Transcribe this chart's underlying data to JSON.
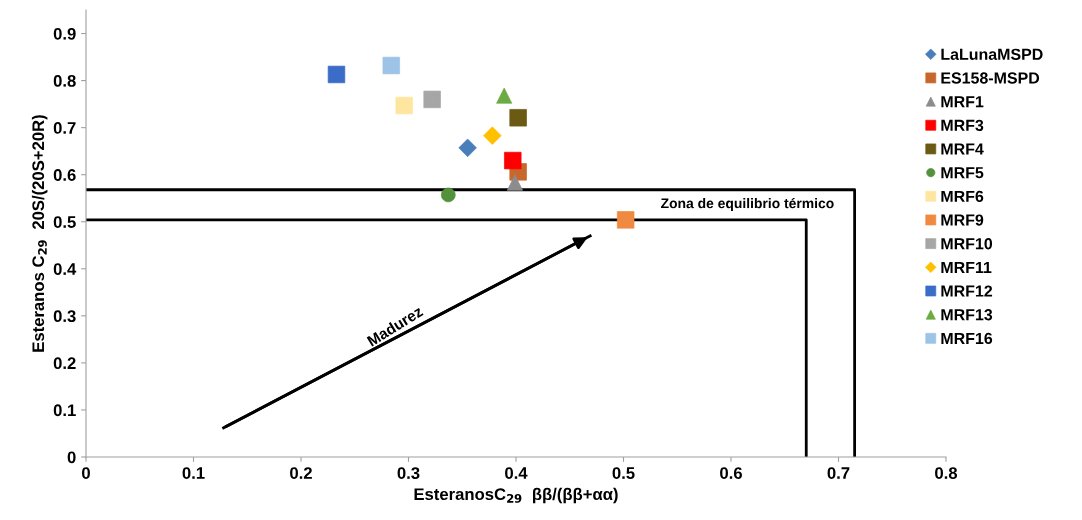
{
  "chart_data": {
    "type": "scatter",
    "xlabel": "EsteranosC$_{29}$  ββ/(ββ+αα)",
    "ylabel": "Esteranos C$_{29}$  20S/(20S+20R)",
    "xlim": [
      0,
      0.8
    ],
    "xticks": [
      0,
      0.1,
      0.2,
      0.3,
      0.4,
      0.5,
      0.6,
      0.7,
      0.8
    ],
    "ylim": [
      0,
      0.95
    ],
    "yticks": [
      0,
      0.1,
      0.2,
      0.3,
      0.4,
      0.5,
      0.6,
      0.7,
      0.8,
      0.9
    ],
    "grid": false,
    "legend": "right",
    "annotations": [
      "Zona de equilibrio térmico",
      "Madurez"
    ],
    "series": [
      {
        "name": "LaLunaMSPD",
        "color": "#4a7ebb",
        "marker": "diamond",
        "x": [
          0.355
        ],
        "values": [
          0.657
        ]
      },
      {
        "name": "ES158-MSPD",
        "color": "#c8672c",
        "marker": "square",
        "x": [
          0.402
        ],
        "values": [
          0.606
        ]
      },
      {
        "name": "MRF1",
        "color": "#8c8c8c",
        "marker": "triangle",
        "x": [
          0.399
        ],
        "values": [
          0.583
        ]
      },
      {
        "name": "MRF3",
        "color": "#ff0000",
        "marker": "square",
        "x": [
          0.397
        ],
        "values": [
          0.63
        ]
      },
      {
        "name": "MRF4",
        "color": "#6b5a14",
        "marker": "square",
        "x": [
          0.402
        ],
        "values": [
          0.721
        ]
      },
      {
        "name": "MRF5",
        "color": "#54913c",
        "marker": "circle",
        "x": [
          0.337
        ],
        "values": [
          0.557
        ]
      },
      {
        "name": "MRF6",
        "color": "#ffe6a0",
        "marker": "square",
        "x": [
          0.296
        ],
        "values": [
          0.747
        ]
      },
      {
        "name": "MRF9",
        "color": "#f08a40",
        "marker": "square",
        "x": [
          0.502
        ],
        "values": [
          0.504
        ]
      },
      {
        "name": "MRF10",
        "color": "#a6a6a6",
        "marker": "square",
        "x": [
          0.322
        ],
        "values": [
          0.76
        ]
      },
      {
        "name": "MRF11",
        "color": "#ffc000",
        "marker": "diamond",
        "x": [
          0.378
        ],
        "values": [
          0.683
        ]
      },
      {
        "name": "MRF12",
        "color": "#3a6cc8",
        "marker": "square",
        "x": [
          0.233
        ],
        "values": [
          0.813
        ]
      },
      {
        "name": "MRF13",
        "color": "#6cab44",
        "marker": "triangle",
        "x": [
          0.389
        ],
        "values": [
          0.768
        ]
      },
      {
        "name": "MRF16",
        "color": "#9dc3e6",
        "marker": "square",
        "x": [
          0.284
        ],
        "values": [
          0.832
        ]
      },
      {
        "type": "line",
        "color": "#000000",
        "marker": "none",
        "x": [
          0,
          0.715,
          0.715
        ],
        "values": [
          0.568,
          0.568,
          0
        ]
      },
      {
        "type": "line",
        "color": "#000000",
        "marker": "none",
        "x": [
          0,
          0.67,
          0.67
        ],
        "values": [
          0.504,
          0.504,
          0
        ]
      },
      {
        "type": "line",
        "color": "#000000",
        "marker": "none",
        "x": [
          0.128,
          0.469
        ],
        "values": [
          0.062,
          0.47
        ]
      }
    ]
  }
}
